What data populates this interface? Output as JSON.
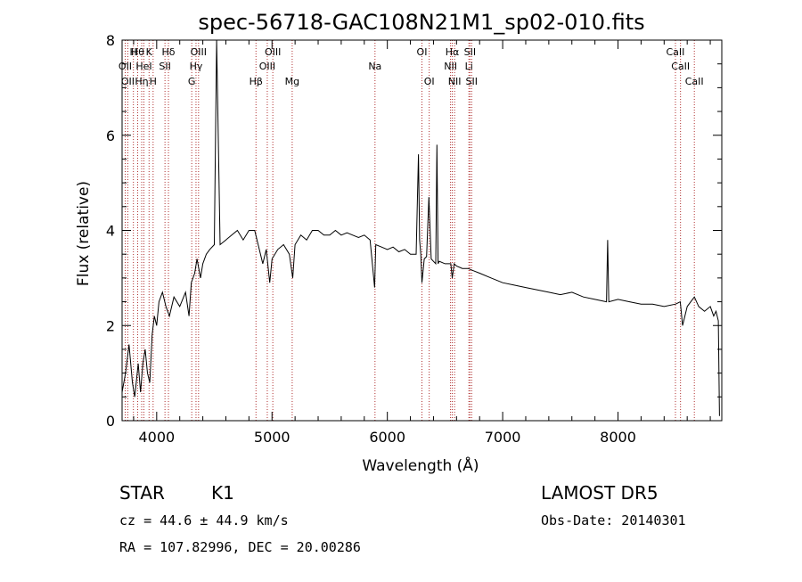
{
  "chart_data": {
    "type": "line",
    "title": "spec-56718-GAC108N21M1_sp02-010.fits",
    "xlabel": "Wavelength (Å)",
    "ylabel": "Flux (relative)",
    "xlim": [
      3700,
      8900
    ],
    "ylim": [
      0,
      8
    ],
    "xticks": [
      {
        "value": 4000,
        "label": "4000"
      },
      {
        "value": 5000,
        "label": "5000"
      },
      {
        "value": 6000,
        "label": "6000"
      },
      {
        "value": 7000,
        "label": "7000"
      },
      {
        "value": 8000,
        "label": "8000"
      }
    ],
    "yticks": [
      {
        "value": 0,
        "label": "0"
      },
      {
        "value": 2,
        "label": "2"
      },
      {
        "value": 4,
        "label": "4"
      },
      {
        "value": 6,
        "label": "6"
      },
      {
        "value": 8,
        "label": "8"
      }
    ],
    "color_line": "#000000",
    "color_marker": "#b03030",
    "series": [
      {
        "x": [
          3700,
          3730,
          3760,
          3790,
          3810,
          3840,
          3860,
          3880,
          3900,
          3920,
          3940,
          3960,
          3980,
          4000,
          4020,
          4050,
          4080,
          4110,
          4150,
          4200,
          4250,
          4280,
          4300,
          4330,
          4350,
          4380,
          4400,
          4430,
          4460,
          4500,
          4520,
          4550,
          4600,
          4650,
          4700,
          4750,
          4800,
          4850,
          4880,
          4920,
          4950,
          4980,
          5000,
          5050,
          5100,
          5150,
          5180,
          5200,
          5250,
          5300,
          5350,
          5400,
          5450,
          5500,
          5550,
          5600,
          5650,
          5700,
          5750,
          5800,
          5850,
          5890,
          5900,
          5950,
          6000,
          6050,
          6100,
          6150,
          6200,
          6250,
          6270,
          6280,
          6290,
          6300,
          6320,
          6340,
          6360,
          6380,
          6400,
          6420,
          6430,
          6440,
          6450,
          6500,
          6550,
          6563,
          6580,
          6600,
          6650,
          6700,
          6750,
          6800,
          6900,
          7000,
          7100,
          7200,
          7300,
          7400,
          7500,
          7600,
          7700,
          7800,
          7900,
          7910,
          7920,
          8000,
          8100,
          8200,
          8300,
          8400,
          8500,
          8540,
          8560,
          8600,
          8662,
          8700,
          8750,
          8800,
          8830,
          8850,
          8870,
          8880
        ],
        "y": [
          0.6,
          1.0,
          1.6,
          0.8,
          0.5,
          1.2,
          0.6,
          1.2,
          1.5,
          1.0,
          0.8,
          1.8,
          2.2,
          2.0,
          2.5,
          2.7,
          2.4,
          2.2,
          2.6,
          2.4,
          2.7,
          2.2,
          2.9,
          3.1,
          3.4,
          3.0,
          3.3,
          3.5,
          3.6,
          3.7,
          8.0,
          3.7,
          3.8,
          3.9,
          4.0,
          3.8,
          4.0,
          4.0,
          3.7,
          3.3,
          3.6,
          2.9,
          3.4,
          3.6,
          3.7,
          3.5,
          3.0,
          3.7,
          3.9,
          3.8,
          4.0,
          4.0,
          3.9,
          3.9,
          4.0,
          3.9,
          3.95,
          3.9,
          3.85,
          3.9,
          3.8,
          2.8,
          3.7,
          3.65,
          3.6,
          3.65,
          3.55,
          3.6,
          3.5,
          3.5,
          5.6,
          3.8,
          3.5,
          2.9,
          3.4,
          3.45,
          4.7,
          3.4,
          3.35,
          3.3,
          5.8,
          3.3,
          3.35,
          3.3,
          3.3,
          3.0,
          3.3,
          3.25,
          3.2,
          3.2,
          3.15,
          3.1,
          3.0,
          2.9,
          2.85,
          2.8,
          2.75,
          2.7,
          2.65,
          2.7,
          2.6,
          2.55,
          2.5,
          3.8,
          2.5,
          2.55,
          2.5,
          2.45,
          2.45,
          2.4,
          2.45,
          2.5,
          2.0,
          2.4,
          2.6,
          2.4,
          2.3,
          2.4,
          2.2,
          2.3,
          2.1,
          0.1
        ]
      }
    ],
    "lines": [
      {
        "w": 3727,
        "label": "OII",
        "row": 2
      },
      {
        "w": 3750,
        "label": "OII",
        "row": 3
      },
      {
        "w": 3798,
        "label": "H",
        "row": 1
      },
      {
        "w": 3835,
        "label": "Hθ",
        "row": 1
      },
      {
        "w": 3870,
        "label": "Hη",
        "row": 3
      },
      {
        "w": 3889,
        "label": "HeI",
        "row": 2
      },
      {
        "w": 3934,
        "label": "K",
        "row": 1
      },
      {
        "w": 3969,
        "label": "H",
        "row": 3
      },
      {
        "w": 4072,
        "label": "SII",
        "row": 2
      },
      {
        "w": 4102,
        "label": "Hδ",
        "row": 1
      },
      {
        "w": 4304,
        "label": "G",
        "row": 3
      },
      {
        "w": 4341,
        "label": "Hγ",
        "row": 2
      },
      {
        "w": 4363,
        "label": "OIII",
        "row": 1
      },
      {
        "w": 4861,
        "label": "Hβ",
        "row": 3
      },
      {
        "w": 4959,
        "label": "OIII",
        "row": 2
      },
      {
        "w": 5007,
        "label": "OIII",
        "row": 1
      },
      {
        "w": 5175,
        "label": "Mg",
        "row": 3
      },
      {
        "w": 5893,
        "label": "Na",
        "row": 2
      },
      {
        "w": 6300,
        "label": "OI",
        "row": 1
      },
      {
        "w": 6363,
        "label": "OI",
        "row": 3
      },
      {
        "w": 6548,
        "label": "NII",
        "row": 2
      },
      {
        "w": 6563,
        "label": "Hα",
        "row": 1
      },
      {
        "w": 6583,
        "label": "NII",
        "row": 3
      },
      {
        "w": 6707,
        "label": "Li",
        "row": 2
      },
      {
        "w": 6716,
        "label": "SII",
        "row": 1
      },
      {
        "w": 6731,
        "label": "SII",
        "row": 3
      },
      {
        "w": 8498,
        "label": "CaII",
        "row": 1
      },
      {
        "w": 8542,
        "label": "CaII",
        "row": 2
      },
      {
        "w": 8662,
        "label": "CaII",
        "row": 3
      }
    ]
  },
  "footer": {
    "object_class": "STAR",
    "subclass": "K1",
    "survey": "LAMOST DR5",
    "redshift_text": "cz = 44.6 ± 44.9 km/s",
    "obs_date": "Obs-Date: 20140301",
    "coords": "RA = 107.82996, DEC =  20.00286"
  }
}
